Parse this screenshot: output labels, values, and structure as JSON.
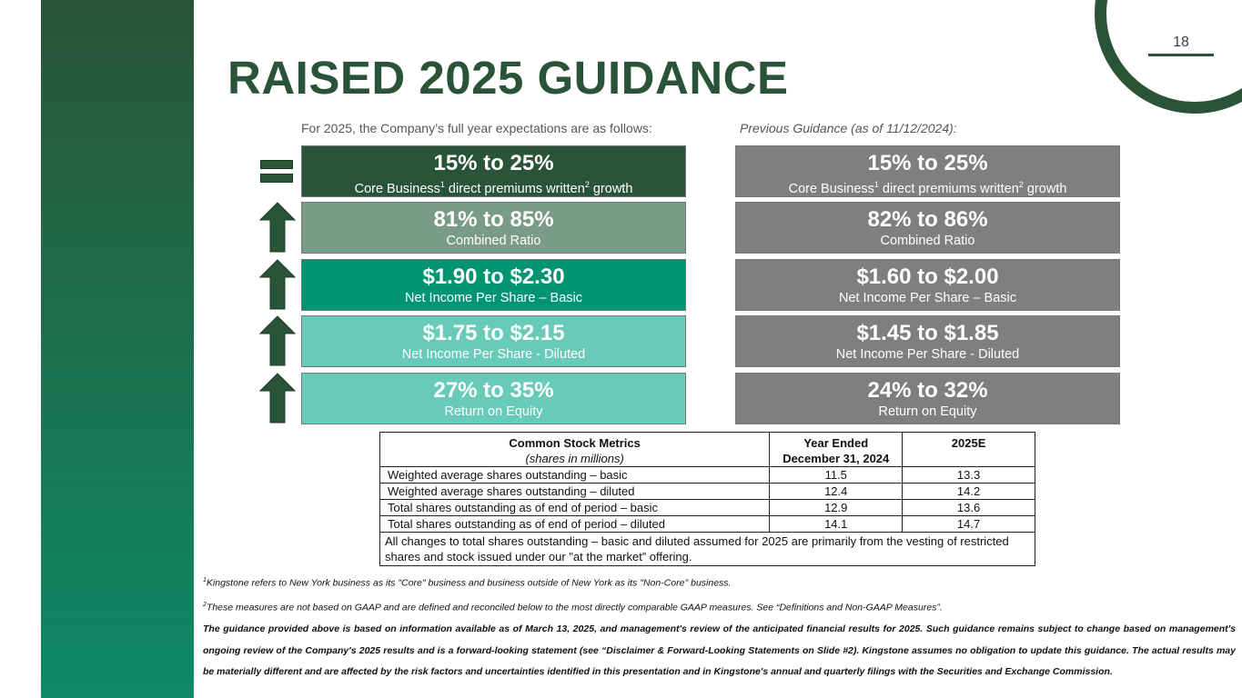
{
  "page": {
    "number": "18",
    "title": "RAISED 2025 GUIDANCE"
  },
  "intro": {
    "current": "For 2025, the Company’s full year expectations are as follows:",
    "previous": "Previous Guidance (as of 11/12/2024):"
  },
  "current": [
    {
      "value": "15% to 25%",
      "label_pre": "Core Business",
      "sup1": "1",
      "label_mid": " direct premiums written",
      "sup2": "2",
      "label_post": " growth",
      "change": "equals-icon"
    },
    {
      "value": "81% to 85%",
      "label": "Combined Ratio",
      "change": "up-arrow-icon"
    },
    {
      "value": "$1.90 to $2.30",
      "label": "Net Income Per Share – Basic",
      "change": "up-arrow-icon"
    },
    {
      "value": "$1.75 to $2.15",
      "label": "Net Income Per Share  - Diluted",
      "change": "up-arrow-icon"
    },
    {
      "value": "27% to 35%",
      "label": "Return on Equity",
      "change": "up-arrow-icon"
    }
  ],
  "previous": [
    {
      "value": "15% to 25%",
      "label_pre": "Core Business",
      "sup1": "1",
      "label_mid": " direct premiums written",
      "sup2": "2",
      "label_post": " growth"
    },
    {
      "value": "82% to 86%",
      "label": "Combined Ratio"
    },
    {
      "value": "$1.60 to $2.00",
      "label": "Net Income Per Share – Basic"
    },
    {
      "value": "$1.45 to $1.85",
      "label": "Net Income Per Share  - Diluted"
    },
    {
      "value": "24% to 32%",
      "label": "Return on Equity"
    }
  ],
  "metrics": {
    "header": {
      "col1": "Common Stock Metrics",
      "col1_sub": "(shares in millions)",
      "col2": "Year Ended",
      "col2_sub": "December 31, 2024",
      "col3": "2025E"
    },
    "rows": [
      {
        "label": "Weighted average shares outstanding  – basic",
        "y2024": "11.5",
        "y2025": "13.3"
      },
      {
        "label": "Weighted average shares outstanding  – diluted",
        "y2024": "12.4",
        "y2025": "14.2"
      },
      {
        "label": "Total shares outstanding as of end of period – basic",
        "y2024": "12.9",
        "y2025": "13.6"
      },
      {
        "label": "Total shares outstanding as of end of period – diluted",
        "y2024": "14.1",
        "y2025": "14.7"
      }
    ],
    "note": "All changes to total shares outstanding – basic and diluted assumed for 2025 are primarily from the vesting of restricted shares and stock issued under our \"at the market” offering."
  },
  "footnotes": {
    "f1_sup": "1",
    "f1": "Kingstone refers to New York business as its \"Core\" business and business outside of New York as its \"Non-Core\" business.",
    "f2_sup": "2",
    "f2": "These measures are not based on GAAP and are defined and reconciled below to the most directly comparable GAAP measures. See “Definitions and Non-GAAP Measures”.",
    "disclaimer": "The guidance provided above is based on information available as of March 13, 2025, and management's review of the anticipated financial results for 2025. Such guidance remains subject to change based on management's ongoing review of the Company's 2025 results and is a forward-looking statement (see “Disclaimer & Forward-Looking Statements on Slide #2). Kingstone assumes no obligation to update this guidance. The actual results may be materially different and are affected by the risk factors and uncertainties identified in this presentation and in Kingstone's annual and quarterly filings with the Securities and Exchange Commission."
  },
  "colors": {
    "brand_dark": "#2a5437",
    "sage": "#7a9b88",
    "teal": "#009474",
    "mint": "#68cab8",
    "gray": "#7f7f7f"
  }
}
